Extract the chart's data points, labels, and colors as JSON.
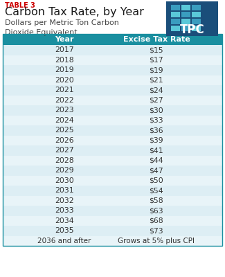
{
  "table3_label": "TABLE 3",
  "title": "Carbon Tax Rate, by Year",
  "subtitle": "Dollars per Metric Ton Carbon\nDioxide Equivalent",
  "col_headers": [
    "Year",
    "Excise Tax Rate"
  ],
  "rows": [
    [
      "2017",
      "$15"
    ],
    [
      "2018",
      "$17"
    ],
    [
      "2019",
      "$19"
    ],
    [
      "2020",
      "$21"
    ],
    [
      "2021",
      "$24"
    ],
    [
      "2022",
      "$27"
    ],
    [
      "2023",
      "$30"
    ],
    [
      "2024",
      "$33"
    ],
    [
      "2025",
      "$36"
    ],
    [
      "2026",
      "$39"
    ],
    [
      "2027",
      "$41"
    ],
    [
      "2028",
      "$44"
    ],
    [
      "2029",
      "$47"
    ],
    [
      "2030",
      "$50"
    ],
    [
      "2031",
      "$54"
    ],
    [
      "2032",
      "$58"
    ],
    [
      "2033",
      "$63"
    ],
    [
      "2034",
      "$68"
    ],
    [
      "2035",
      "$73"
    ],
    [
      "2036 and after",
      "Grows at 5% plus CPI"
    ]
  ],
  "header_bg": "#1a8fa0",
  "header_fg": "#ffffff",
  "row_bg_even": "#ddeef4",
  "row_bg_odd": "#e8f4f8",
  "table3_color": "#cc0000",
  "title_color": "#1a1a1a",
  "subtitle_color": "#444444",
  "border_color": "#1a8fa0",
  "bg_color": "#ffffff",
  "logo_bg": "#1a4e7a",
  "logo_grid": [
    [
      "#3a9dbf",
      "#5ac8d8",
      "#3a9dbf"
    ],
    [
      "#5ac8d8",
      "#3a9dbf",
      "#5ac8d8"
    ],
    [
      "#3a9dbf",
      "#5ac8d8",
      "#3a9dbf"
    ],
    [
      "#5ac8d8",
      "#3a9dbf",
      "#5ac8d8"
    ]
  ]
}
